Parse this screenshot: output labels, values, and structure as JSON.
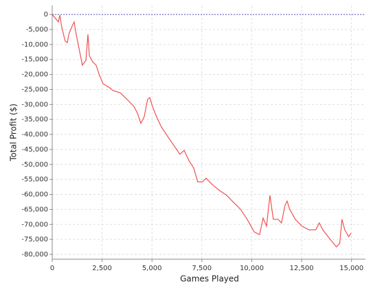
{
  "chart_data": {
    "type": "line",
    "x_label": "Games Played",
    "y_label": "Total Profit ($)",
    "xlim": [
      0,
      15700
    ],
    "ylim": [
      -81600,
      3000
    ],
    "xticks": [
      0,
      {
        "value": 2500,
        "label": "2,500"
      },
      {
        "value": 5000,
        "label": "5,000"
      },
      {
        "value": 7500,
        "label": "7,500"
      },
      {
        "value": 10000,
        "label": "10,000"
      },
      {
        "value": 12500,
        "label": "12,500"
      },
      {
        "value": 15000,
        "label": "15,000"
      }
    ],
    "yticks": [
      0,
      {
        "value": -5000,
        "label": "-5,000"
      },
      {
        "value": -10000,
        "label": "-10,000"
      },
      {
        "value": -15000,
        "label": "-15,000"
      },
      {
        "value": -20000,
        "label": "-20,000"
      },
      {
        "value": -25000,
        "label": "-25,000"
      },
      {
        "value": -30000,
        "label": "-30,000"
      },
      {
        "value": -35000,
        "label": "-35,000"
      },
      {
        "value": -40000,
        "label": "-40,000"
      },
      {
        "value": -45000,
        "label": "-45,000"
      },
      {
        "value": -50000,
        "label": "-50,000"
      },
      {
        "value": -55000,
        "label": "-55,000"
      },
      {
        "value": -60000,
        "label": "-60,000"
      },
      {
        "value": -65000,
        "label": "-65,000"
      },
      {
        "value": -70000,
        "label": "-70,000"
      },
      {
        "value": -75000,
        "label": "-75,000"
      },
      {
        "value": -80000,
        "label": "-80,000"
      }
    ],
    "grid": true,
    "baseline": 0,
    "baseline_color": "#5555bb",
    "series": [
      {
        "color": "#f05050",
        "x": [
          0,
          138,
          310,
          380,
          480,
          650,
          760,
          830,
          1000,
          1100,
          1170,
          1340,
          1510,
          1690,
          1790,
          1860,
          2030,
          2200,
          2370,
          2550,
          2890,
          3060,
          3410,
          3750,
          4090,
          4270,
          4440,
          4610,
          4780,
          4890,
          5020,
          5230,
          5470,
          5810,
          6160,
          6400,
          6610,
          6850,
          7090,
          7290,
          7530,
          7710,
          8050,
          8390,
          8740,
          9080,
          9430,
          9770,
          10120,
          10390,
          10570,
          10740,
          10910,
          11080,
          11320,
          11490,
          11660,
          11770,
          11900,
          12180,
          12520,
          12870,
          13210,
          13380,
          13560,
          13900,
          14240,
          14410,
          14520,
          14660,
          14860,
          14970
        ],
        "values": [
          0,
          -1100,
          -2500,
          -200,
          -4300,
          -8900,
          -9400,
          -6600,
          -3900,
          -2500,
          -5500,
          -11200,
          -16900,
          -15300,
          -6600,
          -13700,
          -15800,
          -16900,
          -20300,
          -23100,
          -24500,
          -25400,
          -26100,
          -28300,
          -30600,
          -32900,
          -36300,
          -34100,
          -28300,
          -27700,
          -30600,
          -34100,
          -37500,
          -40900,
          -44300,
          -46600,
          -45300,
          -48700,
          -51200,
          -55800,
          -55800,
          -54600,
          -56900,
          -58700,
          -60300,
          -62600,
          -64900,
          -68300,
          -72500,
          -73400,
          -67900,
          -70600,
          -60300,
          -68300,
          -68300,
          -69500,
          -63800,
          -62200,
          -64900,
          -68300,
          -70600,
          -71800,
          -71800,
          -69500,
          -71800,
          -74700,
          -77500,
          -76300,
          -68300,
          -71800,
          -74100,
          -72900
        ]
      }
    ]
  }
}
